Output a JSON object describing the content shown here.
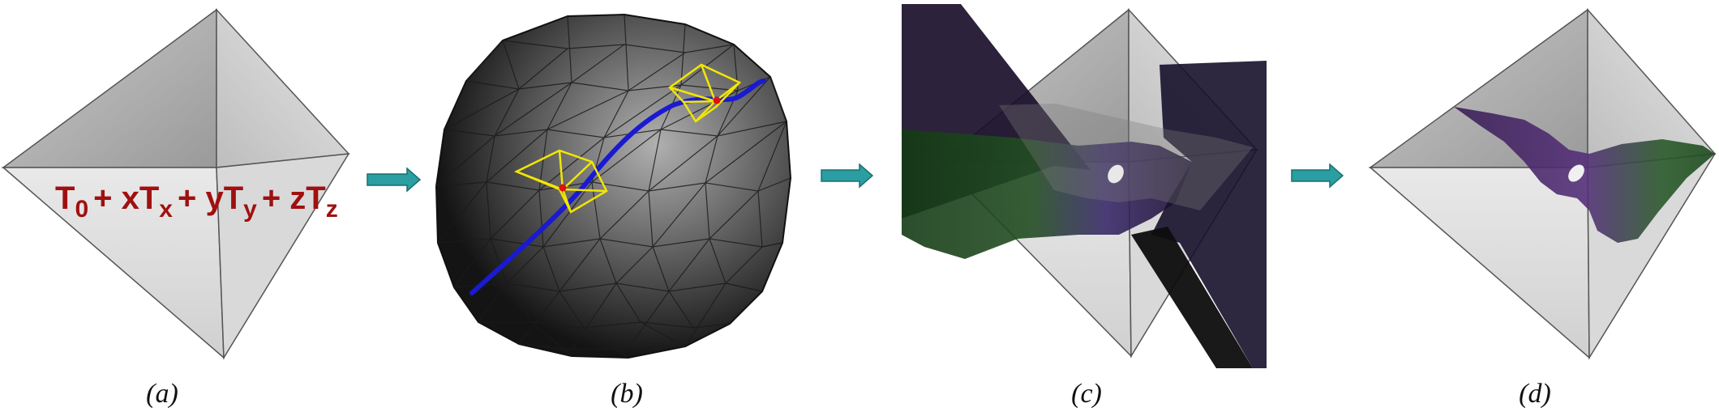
{
  "panels": [
    {
      "caption": "(a)"
    },
    {
      "caption": "(b)"
    },
    {
      "caption": "(c)"
    },
    {
      "caption": "(d)"
    }
  ],
  "formula": {
    "t0": "T",
    "t0_sub": "0",
    "p1": "+ xT",
    "p1_sub": "x",
    "p2": "+ yT",
    "p2_sub": "y",
    "p3": "+ zT",
    "p3_sub": "z"
  },
  "colors": {
    "arrow": "#2a9ea0",
    "sphere_curve": "#1a1ad0",
    "star_outline": "#f2e600",
    "marker": "#e01010",
    "formula": "#a01010"
  }
}
